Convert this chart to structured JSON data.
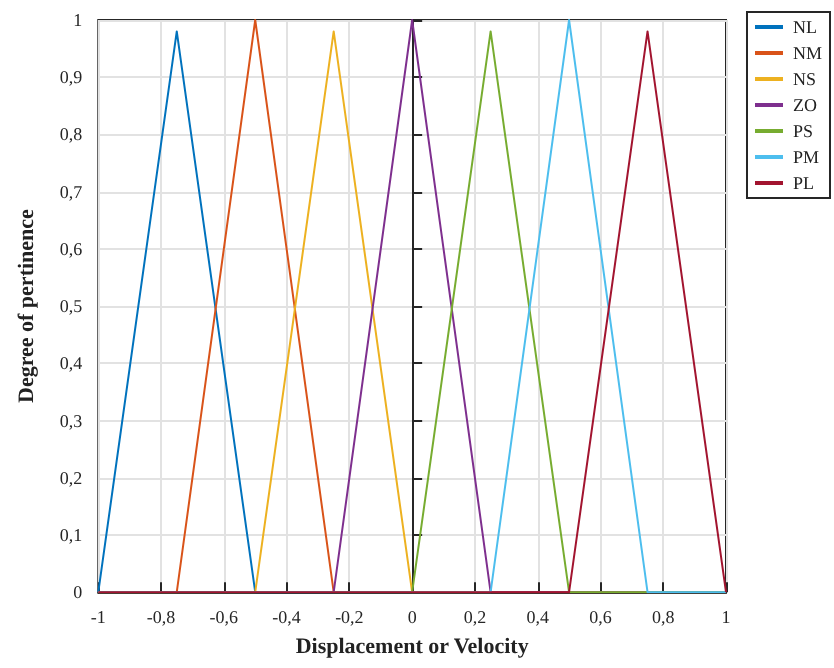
{
  "chart_data": {
    "type": "line",
    "xlabel": "Displacement or Velocity",
    "ylabel": "Degree of pertinence",
    "series": [
      {
        "name": "NL",
        "color": "#0072bd",
        "x": [
          -1,
          -0.75,
          -0.5,
          1
        ],
        "values": [
          0,
          0.98,
          0,
          0
        ]
      },
      {
        "name": "NM",
        "color": "#d95319",
        "x": [
          -1,
          -0.75,
          -0.5,
          -0.25,
          1
        ],
        "values": [
          0,
          0,
          1,
          0,
          0
        ]
      },
      {
        "name": "NS",
        "color": "#edb120",
        "x": [
          -1,
          -0.5,
          -0.25,
          0,
          1
        ],
        "values": [
          0,
          0,
          0.98,
          0,
          0
        ]
      },
      {
        "name": "ZO",
        "color": "#7e2f8e",
        "x": [
          -1,
          -0.25,
          0,
          0.25,
          1
        ],
        "values": [
          0,
          0,
          1,
          0,
          0
        ]
      },
      {
        "name": "PS",
        "color": "#77ac30",
        "x": [
          -1,
          0,
          0.25,
          0.5,
          1
        ],
        "values": [
          0,
          0,
          0.98,
          0,
          0
        ]
      },
      {
        "name": "PM",
        "color": "#4dbeee",
        "x": [
          -1,
          0.25,
          0.5,
          0.75,
          1
        ],
        "values": [
          0,
          0,
          1,
          0,
          0
        ]
      },
      {
        "name": "PL",
        "color": "#a2142f",
        "x": [
          -1,
          0.5,
          0.75,
          1
        ],
        "values": [
          0,
          0,
          0.98,
          0
        ]
      }
    ],
    "xlim": [
      -1,
      1
    ],
    "xticks": [
      -1,
      {
        "value": -0.8,
        "label": "-0,8"
      },
      {
        "value": -0.6,
        "label": "-0,6"
      },
      {
        "value": -0.4,
        "label": "-0,4"
      },
      {
        "value": -0.2,
        "label": "-0,2"
      },
      0,
      {
        "value": 0.2,
        "label": "0,2"
      },
      {
        "value": 0.4,
        "label": "0,4"
      },
      {
        "value": 0.6,
        "label": "0,6"
      },
      {
        "value": 0.8,
        "label": "0,8"
      },
      1
    ],
    "ylim": [
      0,
      1
    ],
    "yticks": [
      0,
      {
        "value": 0.1,
        "label": "0,1"
      },
      {
        "value": 0.2,
        "label": "0,2"
      },
      {
        "value": 0.3,
        "label": "0,3"
      },
      {
        "value": 0.4,
        "label": "0,4"
      },
      {
        "value": 0.5,
        "label": "0,5"
      },
      {
        "value": 0.6,
        "label": "0,6"
      },
      {
        "value": 0.7,
        "label": "0,7"
      },
      {
        "value": 0.8,
        "label": "0,8"
      },
      {
        "value": 0.9,
        "label": "0,9"
      },
      1
    ],
    "grid": true,
    "legend": "right",
    "marker": "none"
  }
}
